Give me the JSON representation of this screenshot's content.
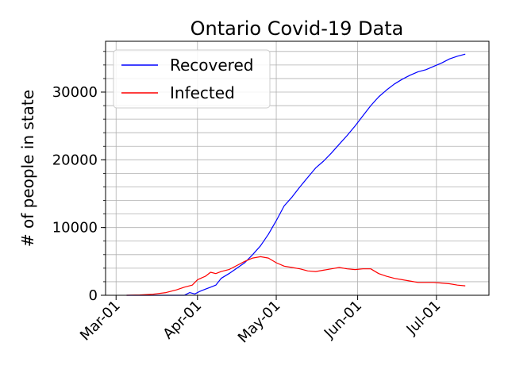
{
  "chart_data": {
    "type": "line",
    "title": "Ontario Covid-19 Data",
    "xlabel": "",
    "ylabel": "# of people in state",
    "x_ticks": [
      {
        "label": "Mar-01",
        "date": "2020-03-01"
      },
      {
        "label": "Apr-01",
        "date": "2020-04-01"
      },
      {
        "label": "May-01",
        "date": "2020-05-01"
      },
      {
        "label": "Jun-01",
        "date": "2020-06-01"
      },
      {
        "label": "Jul-01",
        "date": "2020-07-01"
      }
    ],
    "y_ticks": [
      0,
      10000,
      20000,
      30000
    ],
    "ylim": [
      0,
      37500
    ],
    "xlim": [
      "2020-02-26",
      "2020-07-21"
    ],
    "grid": true,
    "legend_position": "top-left",
    "series": [
      {
        "name": "Recovered",
        "color": "#0000ff",
        "points": [
          [
            "2020-03-05",
            0
          ],
          [
            "2020-03-27",
            0
          ],
          [
            "2020-03-28",
            200
          ],
          [
            "2020-03-29",
            400
          ],
          [
            "2020-03-31",
            200
          ],
          [
            "2020-04-02",
            600
          ],
          [
            "2020-04-04",
            900
          ],
          [
            "2020-04-06",
            1200
          ],
          [
            "2020-04-08",
            1500
          ],
          [
            "2020-04-10",
            2500
          ],
          [
            "2020-04-13",
            3200
          ],
          [
            "2020-04-16",
            4000
          ],
          [
            "2020-04-19",
            4800
          ],
          [
            "2020-04-22",
            6000
          ],
          [
            "2020-04-25",
            7300
          ],
          [
            "2020-04-28",
            9000
          ],
          [
            "2020-05-01",
            11000
          ],
          [
            "2020-05-04",
            13200
          ],
          [
            "2020-05-07",
            14500
          ],
          [
            "2020-05-10",
            16000
          ],
          [
            "2020-05-13",
            17400
          ],
          [
            "2020-05-16",
            18800
          ],
          [
            "2020-05-19",
            19800
          ],
          [
            "2020-05-22",
            21000
          ],
          [
            "2020-05-25",
            22300
          ],
          [
            "2020-05-28",
            23600
          ],
          [
            "2020-05-31",
            25000
          ],
          [
            "2020-06-03",
            26500
          ],
          [
            "2020-06-06",
            28000
          ],
          [
            "2020-06-09",
            29300
          ],
          [
            "2020-06-12",
            30300
          ],
          [
            "2020-06-15",
            31200
          ],
          [
            "2020-06-18",
            31900
          ],
          [
            "2020-06-21",
            32500
          ],
          [
            "2020-06-24",
            33000
          ],
          [
            "2020-06-27",
            33300
          ],
          [
            "2020-06-30",
            33800
          ],
          [
            "2020-07-03",
            34300
          ],
          [
            "2020-07-06",
            34900
          ],
          [
            "2020-07-09",
            35300
          ],
          [
            "2020-07-12",
            35600
          ]
        ]
      },
      {
        "name": "Infected",
        "color": "#ff0000",
        "points": [
          [
            "2020-03-05",
            0
          ],
          [
            "2020-03-10",
            50
          ],
          [
            "2020-03-15",
            150
          ],
          [
            "2020-03-20",
            400
          ],
          [
            "2020-03-24",
            800
          ],
          [
            "2020-03-27",
            1200
          ],
          [
            "2020-03-30",
            1500
          ],
          [
            "2020-04-01",
            2300
          ],
          [
            "2020-04-04",
            2800
          ],
          [
            "2020-04-06",
            3400
          ],
          [
            "2020-04-08",
            3200
          ],
          [
            "2020-04-10",
            3500
          ],
          [
            "2020-04-13",
            3800
          ],
          [
            "2020-04-16",
            4400
          ],
          [
            "2020-04-19",
            5000
          ],
          [
            "2020-04-22",
            5500
          ],
          [
            "2020-04-25",
            5700
          ],
          [
            "2020-04-28",
            5500
          ],
          [
            "2020-05-01",
            4800
          ],
          [
            "2020-05-04",
            4300
          ],
          [
            "2020-05-07",
            4100
          ],
          [
            "2020-05-10",
            3900
          ],
          [
            "2020-05-13",
            3600
          ],
          [
            "2020-05-16",
            3500
          ],
          [
            "2020-05-19",
            3700
          ],
          [
            "2020-05-22",
            3900
          ],
          [
            "2020-05-25",
            4100
          ],
          [
            "2020-05-28",
            3900
          ],
          [
            "2020-05-31",
            3800
          ],
          [
            "2020-06-03",
            3900
          ],
          [
            "2020-06-06",
            3900
          ],
          [
            "2020-06-09",
            3200
          ],
          [
            "2020-06-12",
            2800
          ],
          [
            "2020-06-15",
            2500
          ],
          [
            "2020-06-18",
            2300
          ],
          [
            "2020-06-21",
            2100
          ],
          [
            "2020-06-24",
            1900
          ],
          [
            "2020-06-27",
            1900
          ],
          [
            "2020-06-30",
            1900
          ],
          [
            "2020-07-03",
            1800
          ],
          [
            "2020-07-06",
            1700
          ],
          [
            "2020-07-09",
            1500
          ],
          [
            "2020-07-12",
            1400
          ]
        ]
      }
    ]
  }
}
